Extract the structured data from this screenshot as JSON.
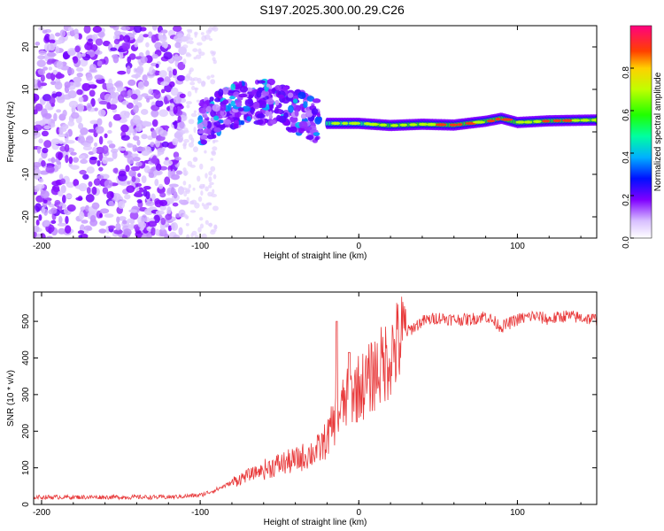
{
  "title": "S197.2025.300.00.29.C26",
  "chart_data": [
    {
      "type": "heatmap",
      "name": "spectrogram",
      "xlabel": "Height of straight line (km)",
      "ylabel": "Frequency (Hz)",
      "xlim": [
        -205,
        150
      ],
      "ylim": [
        -25,
        25
      ],
      "xticks": [
        -200,
        -100,
        0,
        100
      ],
      "yticks": [
        -20,
        -10,
        0,
        10,
        20
      ],
      "grid": false,
      "colorbar": {
        "label": "Normalized spectral amplitude",
        "ticks": [
          0.0,
          0.2,
          0.4,
          0.6,
          0.8
        ],
        "range": [
          0,
          1
        ]
      },
      "description_regions": [
        {
          "x_range": [
            -205,
            -110
          ],
          "freq_range": [
            -25,
            25
          ],
          "amplitude": 0.08,
          "character": "broadband noise"
        },
        {
          "x_range": [
            -100,
            -25
          ],
          "freq_range": [
            -5,
            12
          ],
          "amplitude": 0.2,
          "character": "scattered signal"
        },
        {
          "x_range": [
            -20,
            150
          ],
          "freq_range": [
            1,
            4
          ],
          "amplitude": 0.9,
          "character": "narrowband carrier"
        }
      ],
      "carrier_track": {
        "x": [
          -20,
          0,
          20,
          40,
          60,
          80,
          90,
          100,
          120,
          150
        ],
        "freq": [
          2,
          2,
          1.5,
          1.8,
          1.6,
          2.5,
          3.2,
          2.2,
          2.6,
          2.8
        ]
      }
    },
    {
      "type": "line",
      "name": "snr",
      "xlabel": "Height of straight line (km)",
      "ylabel": "SNR (10 * v/v)",
      "xlim": [
        -205,
        150
      ],
      "ylim": [
        0,
        580
      ],
      "xticks": [
        -200,
        -100,
        0,
        100
      ],
      "yticks": [
        0,
        100,
        200,
        300,
        400,
        500
      ],
      "grid": false,
      "series": [
        {
          "name": "SNR",
          "color": "#e8393a",
          "x": [
            -205,
            -180,
            -150,
            -120,
            -100,
            -90,
            -80,
            -70,
            -60,
            -50,
            -40,
            -30,
            -25,
            -20,
            -15,
            -10,
            -5,
            0,
            5,
            10,
            15,
            20,
            25,
            30,
            40,
            50,
            60,
            70,
            80,
            90,
            100,
            110,
            120,
            130,
            140,
            150
          ],
          "y": [
            20,
            20,
            20,
            20,
            25,
            40,
            60,
            80,
            95,
            110,
            120,
            140,
            150,
            180,
            230,
            270,
            300,
            320,
            330,
            360,
            380,
            410,
            440,
            470,
            500,
            510,
            505,
            505,
            515,
            485,
            505,
            515,
            505,
            515,
            510,
            505
          ]
        }
      ],
      "peaks": [
        {
          "x": -14,
          "y": 500
        },
        {
          "x": -6,
          "y": 415
        }
      ]
    }
  ]
}
